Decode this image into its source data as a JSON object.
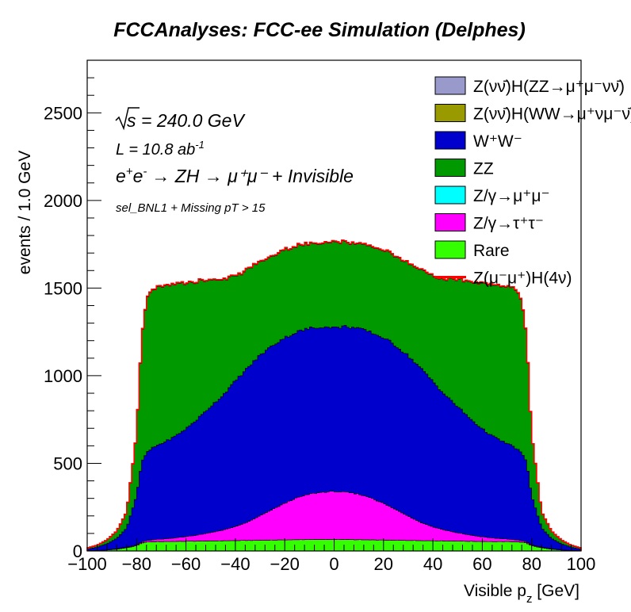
{
  "chart_data": {
    "type": "area",
    "title": "FCCAnalyses: FCC-ee Simulation (Delphes)",
    "xlabel": "Visible p_z [GeV]",
    "ylabel": "events / 1.0 GeV",
    "xlim": [
      -100,
      100
    ],
    "ylim": [
      0,
      2800
    ],
    "x_ticks": [
      "−100",
      "−80",
      "−60",
      "−40",
      "−20",
      "0",
      "20",
      "40",
      "60",
      "80",
      "100"
    ],
    "y_ticks": [
      "0",
      "500",
      "1000",
      "1500",
      "2000",
      "2500"
    ],
    "stacked": true,
    "annotations": {
      "sqrt_s": "= 240.0 GeV",
      "lumi": "L = 10.8 ab",
      "lumi_exp": "-1",
      "process": "→ ZH → μ⁺μ⁻ + Invisible",
      "selection": "sel_BNL1 + Missing pT > 15"
    },
    "legend": [
      {
        "label": "Z(νν̄)H(ZZ→μ⁺μ⁻νν̄)",
        "color": "#9999cc"
      },
      {
        "label": "Z(νν̄)H(WW→μ⁺νμ⁻ν̄)",
        "color": "#999900"
      },
      {
        "label": "W⁺W⁻",
        "color": "#0000cc"
      },
      {
        "label": "ZZ",
        "color": "#009900"
      },
      {
        "label": "Z/γ→μ⁺μ⁻",
        "color": "#00ffff"
      },
      {
        "label": "Z/γ→τ⁺τ⁻",
        "color": "#ff00ff"
      },
      {
        "label": "Rare",
        "color": "#33ff00"
      },
      {
        "label": "Z(μ⁻μ⁺)H(4ν)",
        "color": "#ff0000",
        "line": true
      }
    ],
    "x": [
      -100,
      -96,
      -92,
      -88,
      -84,
      -80,
      -78,
      -76,
      -74,
      -72,
      -70,
      -65,
      -60,
      -55,
      -50,
      -45,
      -40,
      -35,
      -30,
      -25,
      -20,
      -15,
      -10,
      -5,
      0,
      5,
      10,
      15,
      20,
      25,
      30,
      35,
      40,
      45,
      50,
      55,
      60,
      65,
      70,
      72,
      74,
      76,
      78,
      80,
      84,
      88,
      92,
      96,
      100
    ],
    "series": [
      {
        "name": "Rare",
        "color": "#33ff00",
        "values": [
          2,
          3,
          5,
          10,
          18,
          30,
          45,
          50,
          52,
          53,
          53,
          54,
          55,
          56,
          57,
          58,
          59,
          60,
          61,
          62,
          63,
          64,
          65,
          65,
          65,
          65,
          64,
          63,
          62,
          61,
          60,
          59,
          58,
          57,
          56,
          55,
          54,
          53,
          53,
          53,
          52,
          50,
          45,
          30,
          18,
          10,
          5,
          3,
          2
        ]
      },
      {
        "name": "Z/γ→τ⁺τ⁻",
        "color": "#ff00ff",
        "values": [
          0,
          0,
          1,
          2,
          3,
          5,
          7,
          9,
          11,
          13,
          15,
          20,
          27,
          36,
          48,
          62,
          80,
          105,
          140,
          175,
          210,
          240,
          260,
          270,
          275,
          270,
          260,
          240,
          210,
          175,
          140,
          105,
          80,
          62,
          48,
          36,
          27,
          20,
          15,
          13,
          11,
          9,
          7,
          5,
          3,
          2,
          1,
          0,
          0
        ]
      },
      {
        "name": "Z/γ→μ⁺μ⁻",
        "color": "#00ffff",
        "values": [
          0,
          0,
          0,
          0,
          0,
          0,
          0,
          0,
          0,
          0,
          0,
          0,
          0,
          0,
          0,
          0,
          0,
          0,
          0,
          0,
          0,
          0,
          0,
          0,
          0,
          0,
          0,
          0,
          0,
          0,
          0,
          0,
          0,
          0,
          0,
          0,
          0,
          0,
          0,
          0,
          0,
          0,
          0,
          0,
          0,
          0,
          0,
          0,
          0
        ]
      },
      {
        "name": "W⁺W⁻",
        "color": "#0000cc",
        "values": [
          8,
          18,
          35,
          60,
          110,
          280,
          450,
          500,
          520,
          535,
          545,
          575,
          615,
          665,
          720,
          770,
          830,
          880,
          915,
          935,
          945,
          945,
          945,
          945,
          935,
          945,
          945,
          945,
          945,
          935,
          915,
          880,
          830,
          770,
          720,
          665,
          615,
          575,
          545,
          535,
          520,
          500,
          450,
          280,
          110,
          60,
          35,
          18,
          8
        ]
      },
      {
        "name": "ZZ",
        "color": "#009900",
        "values": [
          5,
          10,
          20,
          40,
          90,
          350,
          700,
          870,
          900,
          900,
          890,
          870,
          830,
          780,
          720,
          660,
          600,
          560,
          530,
          510,
          500,
          490,
          480,
          480,
          485,
          480,
          480,
          490,
          500,
          510,
          530,
          560,
          600,
          660,
          720,
          780,
          830,
          870,
          890,
          900,
          900,
          870,
          700,
          350,
          90,
          40,
          20,
          10,
          5
        ]
      },
      {
        "name": "Z(νν̄)H(WW→μ⁺νμ⁻ν̄)",
        "color": "#999900",
        "values": [
          0,
          0,
          0,
          0,
          0,
          0,
          1,
          1,
          1,
          1,
          1,
          1,
          1,
          1,
          1,
          1,
          1,
          1,
          1,
          1,
          1,
          1,
          1,
          1,
          1,
          1,
          1,
          1,
          1,
          1,
          1,
          1,
          1,
          1,
          1,
          1,
          1,
          1,
          1,
          1,
          1,
          1,
          1,
          0,
          0,
          0,
          0,
          0,
          0
        ]
      },
      {
        "name": "Z(νν̄)H(ZZ→μ⁺μ⁻νν̄)",
        "color": "#9999cc",
        "values": [
          0,
          0,
          0,
          0,
          0,
          0,
          1,
          1,
          1,
          1,
          1,
          1,
          1,
          1,
          1,
          1,
          1,
          1,
          1,
          1,
          1,
          1,
          1,
          1,
          1,
          1,
          1,
          1,
          1,
          1,
          1,
          1,
          1,
          1,
          1,
          1,
          1,
          1,
          1,
          1,
          1,
          1,
          1,
          0,
          0,
          0,
          0,
          0,
          0
        ]
      }
    ],
    "signal": {
      "name": "Z(μ⁻μ⁺)H(4ν)",
      "color": "#ff0000",
      "role": "outline on top of stack"
    }
  }
}
